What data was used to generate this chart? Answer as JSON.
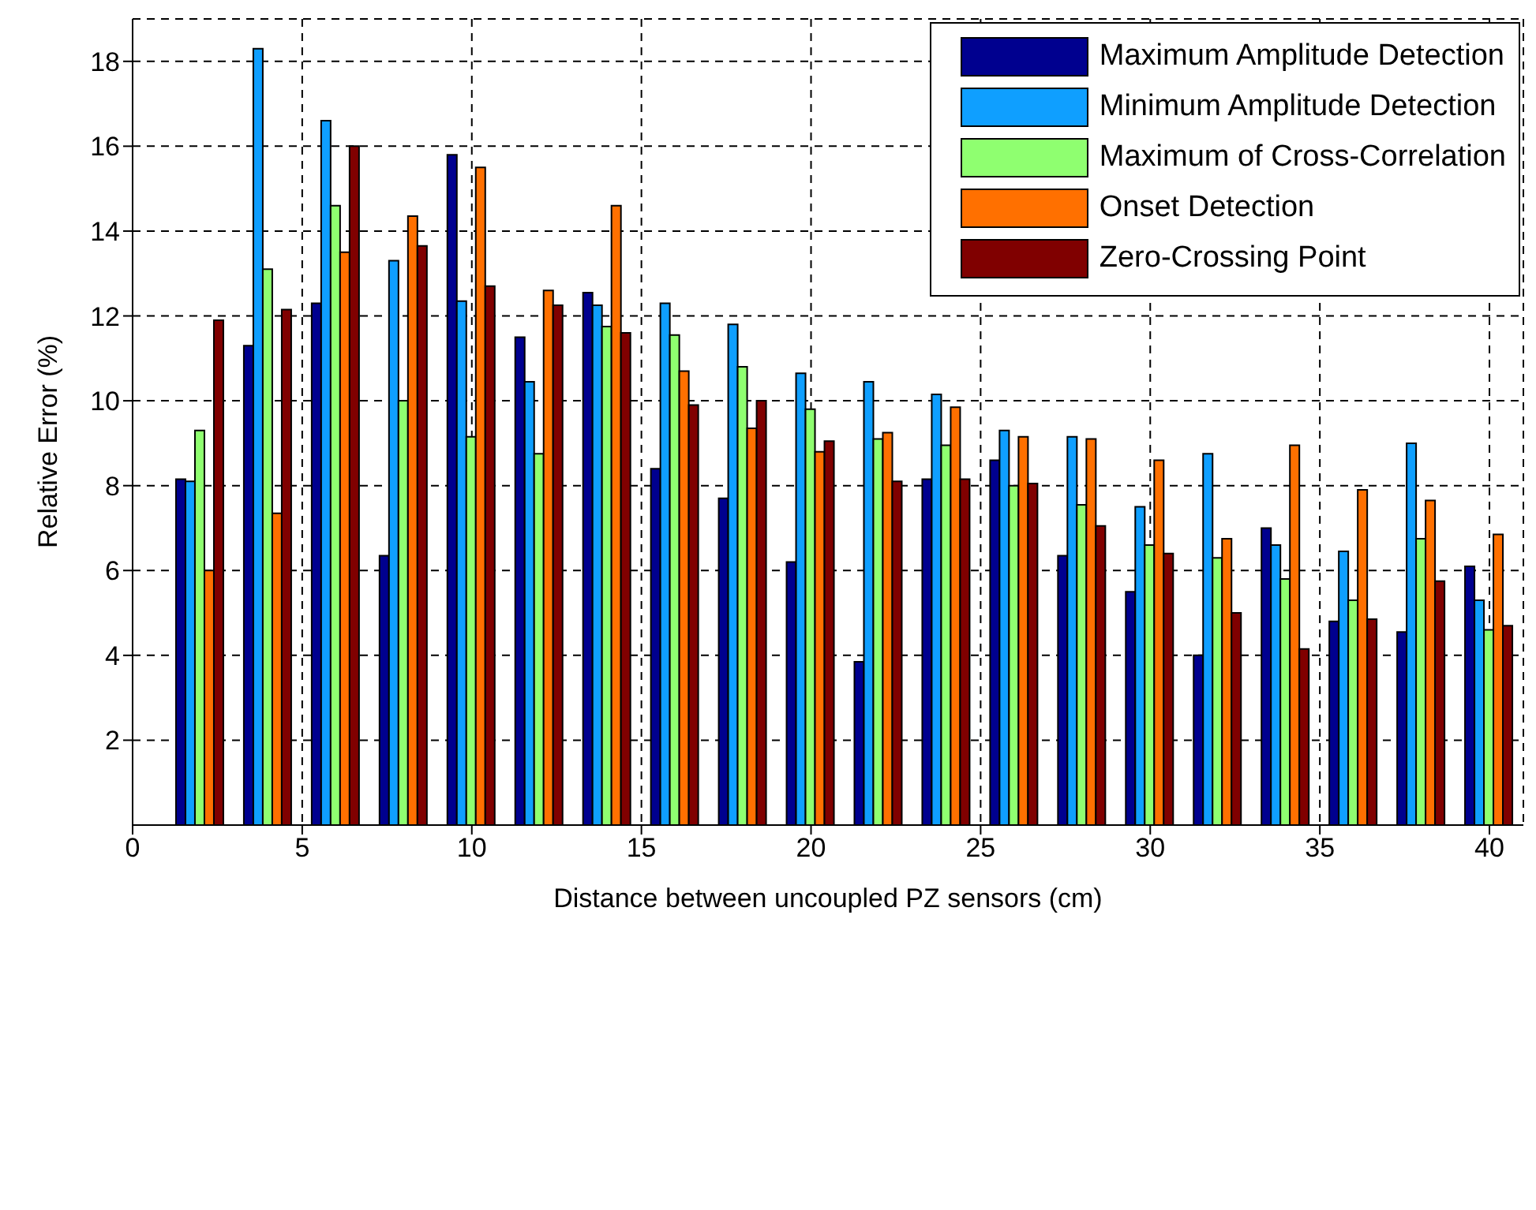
{
  "chart_data": {
    "type": "bar",
    "xlabel": "Distance between uncoupled PZ sensors (cm)",
    "ylabel": "Relative Error (%)",
    "x": [
      2,
      4,
      6,
      8,
      10,
      12,
      14,
      16,
      18,
      20,
      22,
      24,
      26,
      28,
      30,
      32,
      34,
      36,
      38,
      40
    ],
    "series": [
      {
        "name": "Maximum Amplitude Detection",
        "color": "#00008f",
        "values": [
          8.15,
          11.3,
          12.3,
          6.35,
          15.8,
          11.5,
          12.55,
          8.4,
          7.7,
          6.2,
          3.85,
          8.15,
          8.6,
          6.35,
          5.5,
          4.0,
          7.0,
          4.8,
          4.55,
          6.1
        ]
      },
      {
        "name": "Minimum Amplitude Detection",
        "color": "#0f9fff",
        "values": [
          8.1,
          18.3,
          16.6,
          13.3,
          12.35,
          10.45,
          12.25,
          12.3,
          11.8,
          10.65,
          10.45,
          10.15,
          9.3,
          9.15,
          7.5,
          8.75,
          6.6,
          6.45,
          9.0,
          5.3
        ]
      },
      {
        "name": "Maximum of Cross-Correlation",
        "color": "#8fff70",
        "values": [
          9.3,
          13.1,
          14.6,
          10.0,
          9.15,
          8.75,
          11.75,
          11.55,
          10.8,
          9.8,
          9.1,
          8.95,
          8.0,
          7.55,
          6.6,
          6.3,
          5.8,
          5.3,
          6.75,
          4.6
        ]
      },
      {
        "name": "Onset Detection",
        "color": "#ff7000",
        "values": [
          6.0,
          7.35,
          13.5,
          14.35,
          15.5,
          12.6,
          14.6,
          10.7,
          9.35,
          8.8,
          9.25,
          9.85,
          9.15,
          9.1,
          8.6,
          6.75,
          8.95,
          7.9,
          7.65,
          6.85
        ]
      },
      {
        "name": "Zero-Crossing Point",
        "color": "#800000",
        "values": [
          11.9,
          12.15,
          16.0,
          13.65,
          12.7,
          12.25,
          11.6,
          9.9,
          10.0,
          9.05,
          8.1,
          8.15,
          8.05,
          7.05,
          6.4,
          5.0,
          4.15,
          4.85,
          5.75,
          4.7
        ]
      }
    ],
    "xlim": [
      0,
      41
    ],
    "xticks": [
      0,
      5,
      10,
      15,
      20,
      25,
      30,
      35,
      40
    ],
    "ylim": [
      0,
      19
    ],
    "yticks": [
      2,
      4,
      6,
      8,
      10,
      12,
      14,
      16,
      18
    ],
    "grid": true,
    "legend": "top right"
  }
}
